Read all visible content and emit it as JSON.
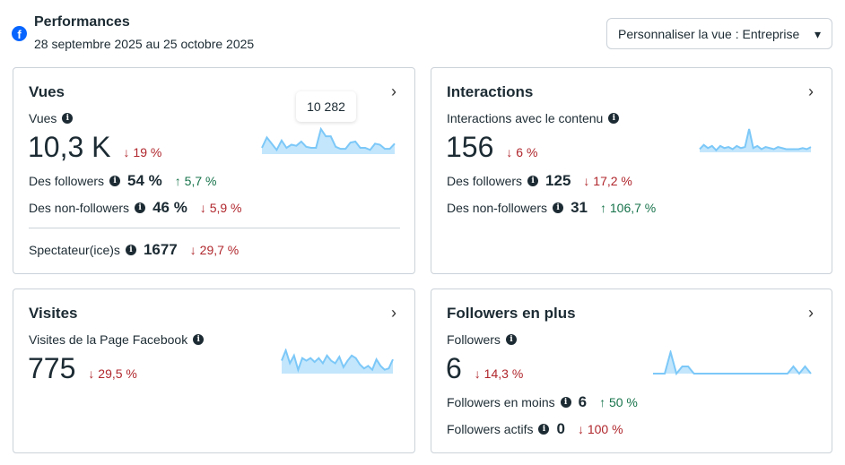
{
  "header": {
    "title": "Performances",
    "date_range": "28 septembre 2025 au 25 octobre 2025",
    "view_select": "Personnaliser la vue : Entreprise"
  },
  "colors": {
    "down": "#b0272d",
    "up": "#17734b",
    "spark_line": "#7cc8f8",
    "spark_fill": "#c3e6fc"
  },
  "cards": [
    {
      "title": "Vues",
      "metric_label": "Vues",
      "value": "10,3 K",
      "change": "↓ 19 %",
      "tooltip": "10 282",
      "rows": [
        {
          "label": "Des followers",
          "value": "54 %",
          "change": "↑ 5,7 %",
          "dir": "up"
        },
        {
          "label": "Des non-followers",
          "value": "46 %",
          "change": "↓ 5,9 %",
          "dir": "down"
        }
      ],
      "footer": {
        "label": "Spectateur(ice)s",
        "value": "1677",
        "change": "↓ 29,7 %"
      },
      "spark": [
        6,
        16,
        10,
        4,
        13,
        6,
        9,
        8,
        12,
        7,
        6,
        6,
        24,
        17,
        17,
        7,
        5,
        5,
        11,
        12,
        6,
        6,
        4,
        10,
        9,
        5,
        5,
        10
      ]
    },
    {
      "title": "Interactions",
      "metric_label": "Interactions avec le contenu",
      "value": "156",
      "change": "↓ 6 %",
      "rows": [
        {
          "label": "Des followers",
          "value": "125",
          "change": "↓ 17,2 %",
          "dir": "down"
        },
        {
          "label": "Des non-followers",
          "value": "31",
          "change": "↑ 106,7 %",
          "dir": "up"
        }
      ],
      "spark": [
        3,
        7,
        4,
        6,
        2,
        6,
        4,
        5,
        3,
        6,
        4,
        5,
        22,
        4,
        6,
        3,
        5,
        4,
        3,
        5,
        4,
        3,
        3,
        3,
        3,
        4,
        3,
        5
      ]
    },
    {
      "title": "Visites",
      "metric_label": "Visites de la Page Facebook",
      "value": "775",
      "change": "↓ 29,5 %",
      "spark": [
        10,
        18,
        8,
        14,
        3,
        12,
        10,
        12,
        9,
        12,
        8,
        14,
        10,
        8,
        13,
        5,
        10,
        14,
        12,
        7,
        4,
        6,
        3,
        11,
        6,
        3,
        4,
        11
      ]
    },
    {
      "title": "Followers en plus",
      "metric_label": "Followers",
      "value": "6",
      "change": "↓ 14,3 %",
      "rows": [
        {
          "label": "Followers en moins",
          "value": "6",
          "change": "↑ 50 %",
          "dir": "up"
        },
        {
          "label": "Followers actifs",
          "value": "0",
          "change": "↓ 100 %",
          "dir": "down"
        }
      ],
      "spark": [
        0,
        0,
        0,
        3,
        0,
        1,
        1,
        0,
        0,
        0,
        0,
        0,
        0,
        0,
        0,
        0,
        0,
        0,
        0,
        0,
        0,
        0,
        0,
        0,
        1,
        0,
        1,
        0
      ]
    }
  ]
}
